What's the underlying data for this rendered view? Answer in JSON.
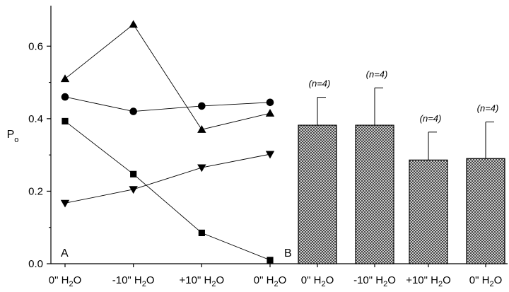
{
  "chart_data": [
    {
      "type": "line",
      "panel_label": "A",
      "ylabel": "P",
      "ylabel_subscript": "o",
      "ylim": [
        0.0,
        0.7
      ],
      "yticks": [
        0.0,
        0.2,
        0.4,
        0.6
      ],
      "ytick_labels": [
        "0.0",
        "0.2",
        "0.4",
        "0.6"
      ],
      "categories": [
        {
          "main": "0\" H",
          "sub": "2",
          "tail": "O"
        },
        {
          "main": "-10\" H",
          "sub": "2",
          "tail": "O"
        },
        {
          "main": "+10\" H",
          "sub": "2",
          "tail": "O"
        },
        {
          "main": "0\" H",
          "sub": "2",
          "tail": "O"
        }
      ],
      "series": [
        {
          "name": "triangle-up",
          "marker": "triangle-up",
          "values": [
            0.51,
            0.66,
            0.37,
            0.415
          ]
        },
        {
          "name": "circle",
          "marker": "circle",
          "values": [
            0.46,
            0.42,
            0.435,
            0.445
          ]
        },
        {
          "name": "square",
          "marker": "square",
          "values": [
            0.393,
            0.247,
            0.085,
            0.01
          ]
        },
        {
          "name": "triangle-down",
          "marker": "triangle-down",
          "values": [
            0.167,
            0.205,
            0.265,
            0.302
          ]
        }
      ]
    },
    {
      "type": "bar",
      "panel_label": "B",
      "ylim": [
        0.0,
        0.7
      ],
      "categories": [
        {
          "main": "0\" H",
          "sub": "2",
          "tail": "O"
        },
        {
          "main": "-10\" H",
          "sub": "2",
          "tail": "O"
        },
        {
          "main": "+10\" H",
          "sub": "2",
          "tail": "O"
        },
        {
          "main": "0\" H",
          "sub": "2",
          "tail": "O"
        }
      ],
      "values": [
        0.382,
        0.382,
        0.286,
        0.29
      ],
      "errors": [
        0.077,
        0.103,
        0.077,
        0.101
      ],
      "n_labels": [
        "(n=4)",
        "(n=4)",
        "(n=4)",
        "(n=4)"
      ]
    }
  ]
}
